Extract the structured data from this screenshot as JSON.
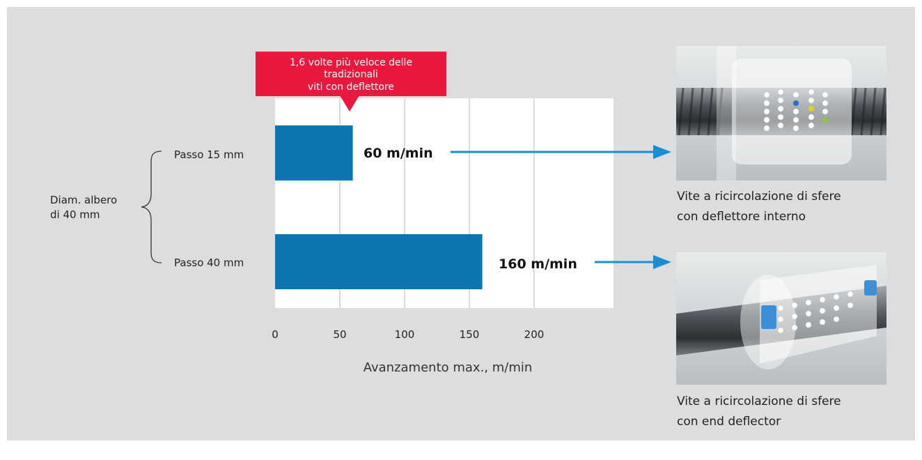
{
  "chart_data": {
    "type": "bar",
    "orientation": "horizontal",
    "categories": [
      "Passo 15 mm",
      "Passo 40 mm"
    ],
    "values": [
      60,
      160
    ],
    "value_labels": [
      "60 m/min",
      "160 m/min"
    ],
    "xlabel": "Avanzamento max., m/min",
    "xlim": [
      0,
      250
    ],
    "xticks": [
      0,
      50,
      100,
      150,
      200
    ],
    "grid": true,
    "bar_color": "#0b75b0",
    "group_label": [
      "Diam. albero",
      "di 40 mm"
    ]
  },
  "callout": {
    "lines": [
      "1,6 volte più veloce delle",
      "tradizionali",
      "viti con deflettore"
    ],
    "color": "#e8183f"
  },
  "photos": [
    {
      "icon": "ball-screw-internal-deflector-image",
      "caption": [
        "Vite a ricircolazione di sfere",
        "con deflettore interno"
      ]
    },
    {
      "icon": "ball-screw-end-deflector-image",
      "caption": [
        "Vite a ricircolazione di sfere",
        "con end deflector"
      ]
    }
  ],
  "colors": {
    "background": "#dcddde",
    "plot": "#ffffff",
    "arrow": "#1a8ed1"
  }
}
